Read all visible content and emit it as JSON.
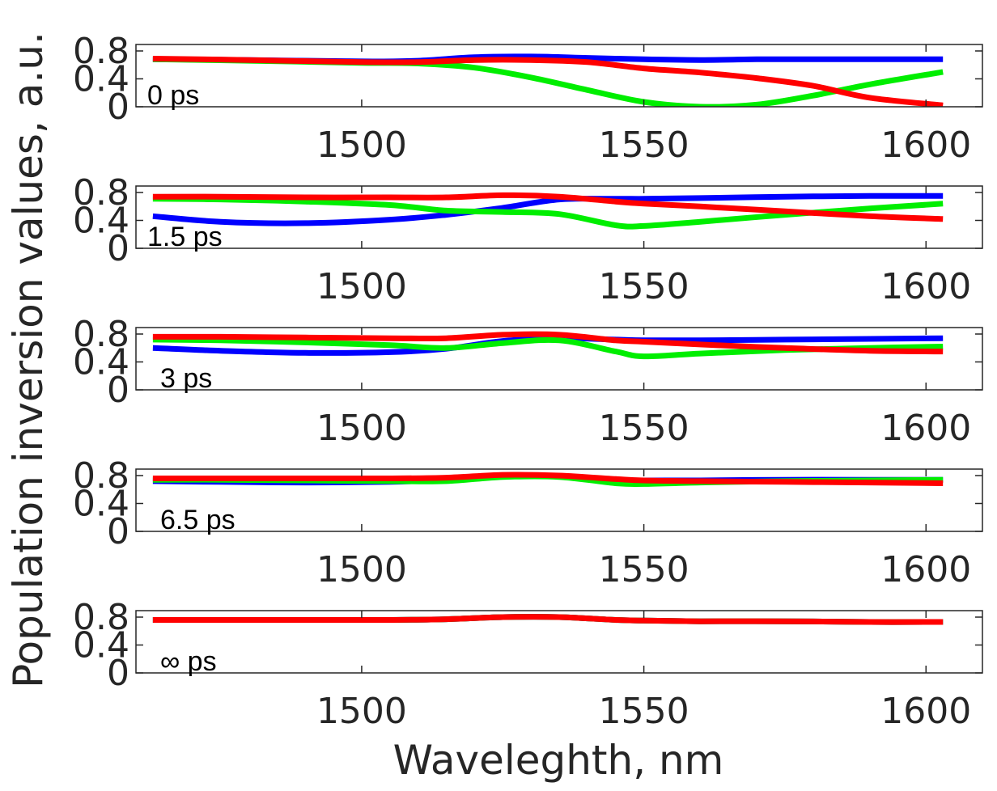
{
  "chart_data": {
    "type": "line",
    "xlabel": "Waveleghth, nm",
    "ylabel": "Population inversion values, a.u.",
    "xlim": [
      1460,
      1610
    ],
    "ylim": [
      0,
      0.8
    ],
    "xticks": [
      1500,
      1550,
      1600
    ],
    "yticks": [
      0,
      0.4,
      0.8
    ],
    "ytick_labels": [
      "0",
      "0.4",
      "0.8"
    ],
    "series_colors": [
      "#0000ff",
      "#00ee00",
      "#ff0000"
    ],
    "panels": [
      {
        "label": "0 ps",
        "x": [
          1463,
          1480,
          1500,
          1510,
          1520,
          1530,
          1540,
          1550,
          1560,
          1570,
          1580,
          1590,
          1603
        ],
        "series": [
          {
            "color": "#0000ff",
            "values": [
              0.68,
              0.67,
              0.65,
              0.66,
              0.71,
              0.72,
              0.7,
              0.68,
              0.67,
              0.68,
              0.68,
              0.68,
              0.68
            ]
          },
          {
            "color": "#00ee00",
            "values": [
              0.68,
              0.66,
              0.63,
              0.62,
              0.56,
              0.42,
              0.24,
              0.07,
              0.0,
              0.03,
              0.16,
              0.32,
              0.5
            ]
          },
          {
            "color": "#ff0000",
            "values": [
              0.69,
              0.67,
              0.64,
              0.64,
              0.67,
              0.67,
              0.64,
              0.55,
              0.49,
              0.41,
              0.3,
              0.13,
              0.02
            ]
          }
        ]
      },
      {
        "label": "1.5 ps",
        "x": [
          1463,
          1475,
          1490,
          1505,
          1515,
          1525,
          1535,
          1545,
          1550,
          1560,
          1575,
          1590,
          1603
        ],
        "series": [
          {
            "color": "#0000ff",
            "values": [
              0.46,
              0.38,
              0.36,
              0.41,
              0.48,
              0.58,
              0.7,
              0.71,
              0.71,
              0.72,
              0.74,
              0.75,
              0.75
            ]
          },
          {
            "color": "#00ee00",
            "values": [
              0.71,
              0.7,
              0.67,
              0.62,
              0.54,
              0.52,
              0.49,
              0.33,
              0.32,
              0.38,
              0.48,
              0.57,
              0.64
            ]
          },
          {
            "color": "#ff0000",
            "values": [
              0.74,
              0.74,
              0.73,
              0.73,
              0.73,
              0.76,
              0.74,
              0.67,
              0.64,
              0.6,
              0.53,
              0.46,
              0.42
            ]
          }
        ]
      },
      {
        "label": "3 ps",
        "x": [
          1463,
          1475,
          1490,
          1505,
          1515,
          1525,
          1535,
          1545,
          1550,
          1560,
          1575,
          1590,
          1603
        ],
        "series": [
          {
            "color": "#0000ff",
            "values": [
              0.6,
              0.56,
              0.53,
              0.54,
              0.59,
              0.7,
              0.74,
              0.72,
              0.71,
              0.71,
              0.72,
              0.73,
              0.74
            ]
          },
          {
            "color": "#00ee00",
            "values": [
              0.72,
              0.71,
              0.68,
              0.64,
              0.6,
              0.67,
              0.71,
              0.55,
              0.48,
              0.52,
              0.57,
              0.6,
              0.62
            ]
          },
          {
            "color": "#ff0000",
            "values": [
              0.76,
              0.76,
              0.75,
              0.74,
              0.74,
              0.79,
              0.79,
              0.71,
              0.69,
              0.65,
              0.6,
              0.56,
              0.55
            ]
          }
        ]
      },
      {
        "label": "6.5 ps",
        "x": [
          1463,
          1475,
          1490,
          1505,
          1515,
          1525,
          1535,
          1545,
          1550,
          1560,
          1575,
          1590,
          1603
        ],
        "series": [
          {
            "color": "#0000ff",
            "values": [
              0.72,
              0.71,
              0.7,
              0.71,
              0.74,
              0.79,
              0.79,
              0.74,
              0.73,
              0.73,
              0.74,
              0.74,
              0.74
            ]
          },
          {
            "color": "#00ee00",
            "values": [
              0.74,
              0.74,
              0.73,
              0.72,
              0.72,
              0.78,
              0.78,
              0.69,
              0.68,
              0.7,
              0.72,
              0.73,
              0.74
            ]
          },
          {
            "color": "#ff0000",
            "values": [
              0.76,
              0.76,
              0.76,
              0.76,
              0.77,
              0.81,
              0.8,
              0.75,
              0.73,
              0.72,
              0.71,
              0.7,
              0.69
            ]
          }
        ]
      },
      {
        "label": "∞ ps",
        "x": [
          1463,
          1475,
          1490,
          1505,
          1515,
          1525,
          1535,
          1545,
          1550,
          1560,
          1575,
          1590,
          1603
        ],
        "series": [
          {
            "color": "#0000ff",
            "values": [
              0.76,
              0.76,
              0.76,
              0.76,
              0.77,
              0.8,
              0.8,
              0.76,
              0.75,
              0.74,
              0.74,
              0.73,
              0.73
            ]
          },
          {
            "color": "#00ee00",
            "values": [
              0.76,
              0.76,
              0.76,
              0.76,
              0.77,
              0.8,
              0.8,
              0.76,
              0.75,
              0.74,
              0.74,
              0.73,
              0.73
            ]
          },
          {
            "color": "#ff0000",
            "values": [
              0.76,
              0.76,
              0.76,
              0.76,
              0.77,
              0.8,
              0.8,
              0.76,
              0.75,
              0.74,
              0.74,
              0.73,
              0.73
            ]
          }
        ]
      }
    ]
  }
}
